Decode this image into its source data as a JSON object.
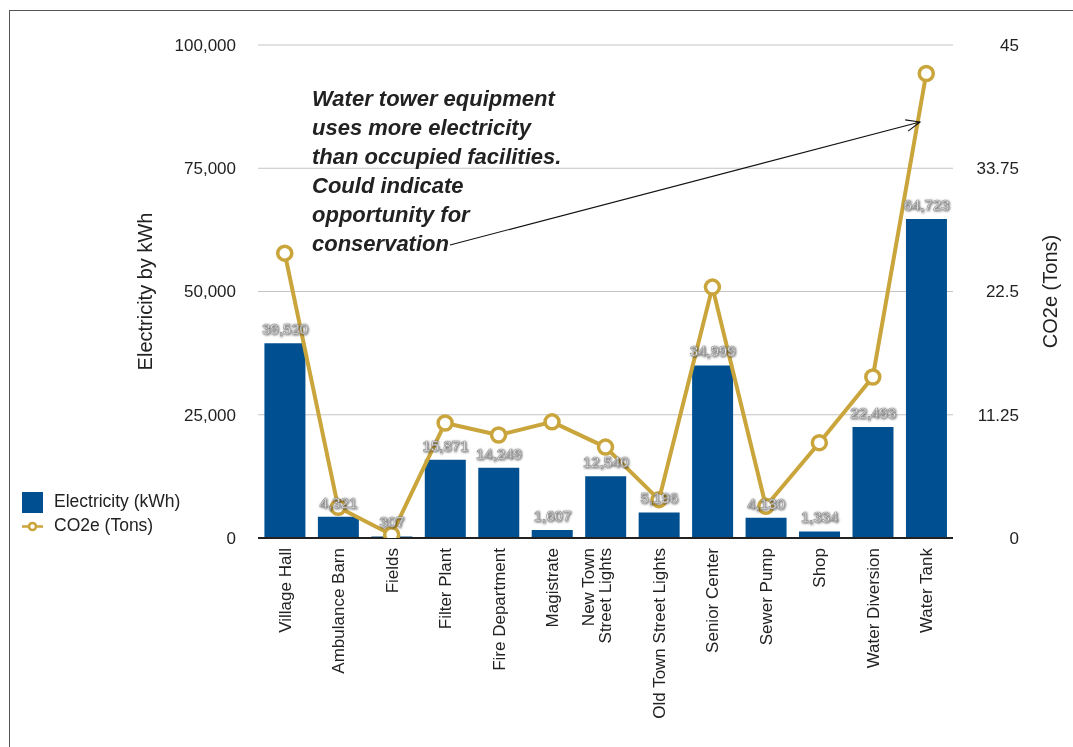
{
  "chart_data": {
    "type": "bar",
    "categories": [
      "Village Hall",
      "Ambulance Barn",
      "Fields",
      "Filter Plant",
      "Fire Department",
      "Magistrate",
      "New Town\nStreet Lights",
      "Old Town Street Lights",
      "Senior Center",
      "Sewer Pump",
      "Shop",
      "Water Diversion",
      "Water Tank"
    ],
    "series": [
      {
        "name": "Electricity (kWh)",
        "color": "#005091",
        "values": [
          39520,
          4321,
          307,
          15871,
          14249,
          1607,
          12540,
          5196,
          34999,
          4130,
          1334,
          22493,
          64723
        ],
        "value_labels": [
          "39,520",
          "4,321",
          "307",
          "15,871",
          "14,249",
          "1,607",
          "12,540",
          "5,196",
          "34,999",
          "4,130",
          "1,334",
          "22,493",
          "64,723"
        ]
      },
      {
        "name": "CO2e (Tons)",
        "type": "line",
        "axis": "y2",
        "color": "#c9a53c",
        "values": [
          26.0,
          2.8,
          0.3,
          10.5,
          9.4,
          10.6,
          8.3,
          3.5,
          22.9,
          2.9,
          8.7,
          14.7,
          42.4
        ]
      }
    ],
    "ylabel": "Electricity by kWh",
    "y2label": "CO2e (Tons)",
    "ylim": [
      0,
      100000
    ],
    "yticks": [
      0,
      {
        "value": 25000,
        "label": "25,000"
      },
      {
        "value": 50000,
        "label": "50,000"
      },
      {
        "value": 75000,
        "label": "75,000"
      },
      {
        "value": 100000,
        "label": "100,000"
      }
    ],
    "y2lim": [
      0,
      45
    ],
    "y2ticks": [
      0,
      11.25,
      22.5,
      33.75,
      45
    ],
    "grid": "y",
    "legend": "bottom left",
    "marker": "circle",
    "line_style": "solid",
    "annotations": [
      "Water tower equipment\nuses more electricity\nthan occupied facilities.\nCould indicate\nopportunity for\nconservation"
    ]
  }
}
